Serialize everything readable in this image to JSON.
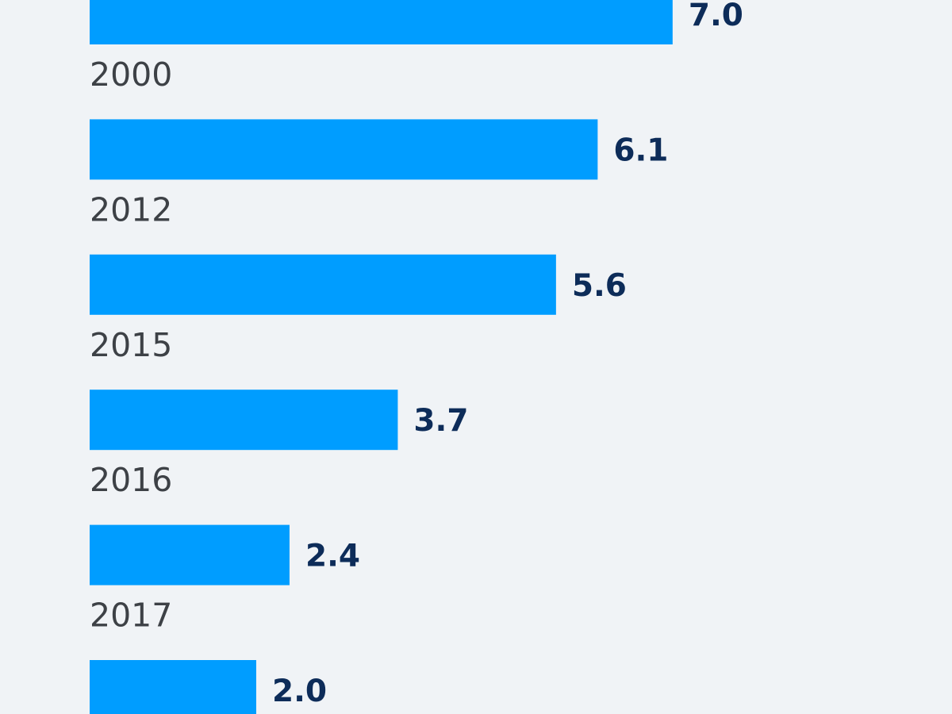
{
  "chart_data": {
    "type": "bar",
    "orientation": "horizontal",
    "categories": [
      "2000",
      "2012",
      "2015",
      "2016",
      "2017",
      ""
    ],
    "values": [
      7.0,
      6.1,
      5.6,
      3.7,
      2.4,
      2.0
    ],
    "value_labels": [
      "7.0",
      "6.1",
      "5.6",
      "3.7",
      "2.4",
      "2.0"
    ],
    "xlim": [
      0,
      10.45
    ],
    "grid": false,
    "legend": "none",
    "colors": {
      "bar": "#009dff",
      "value_text": "#0d2c59",
      "category_text": "#3d4146",
      "background": "#f0f3f6"
    }
  }
}
